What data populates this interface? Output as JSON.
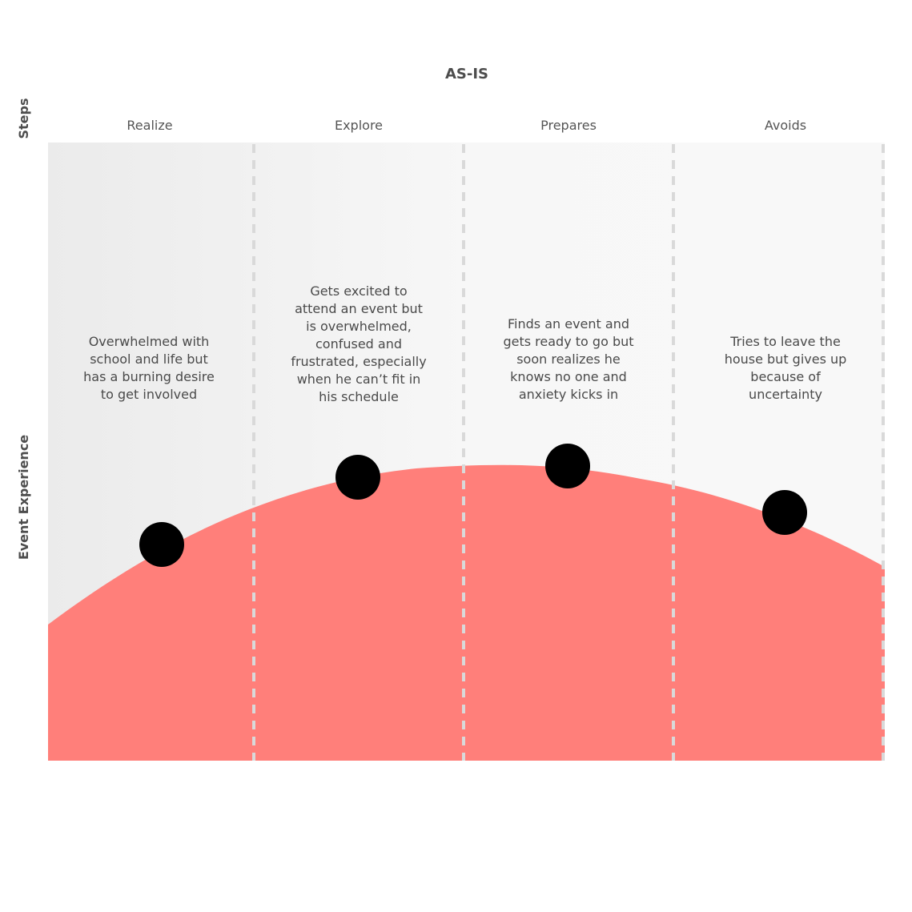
{
  "title": "AS-IS",
  "axes": {
    "steps_label": "Steps",
    "experience_label": "Event Experience"
  },
  "steps": [
    {
      "name": "Realize",
      "description": "Overwhelmed with school and life but has a burning desire to get involved"
    },
    {
      "name": "Explore",
      "description": "Gets excited to attend an event but is overwhelmed, confused and frustrated, especially when he can’t fit in his schedule"
    },
    {
      "name": "Prepares",
      "description": "Finds an event and gets ready to go but soon realizes he knows no one and anxiety kicks in"
    },
    {
      "name": "Avoids",
      "description": "Tries to leave the house but gives up because of uncertainty"
    }
  ],
  "colors": {
    "experience_fill": "#ff7f7a",
    "point": "#000000",
    "divider": "#d9d9d9",
    "panel_gradient_start": "#ebebeb",
    "panel_gradient_end": "#f8f8f8"
  }
}
